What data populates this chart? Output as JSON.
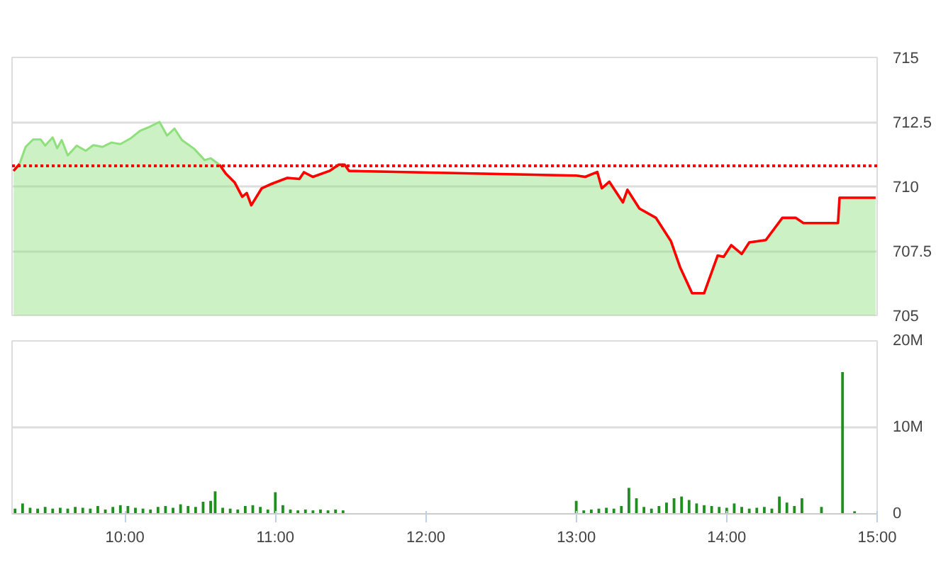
{
  "chart_data": [
    {
      "type": "area",
      "x": [
        9.26,
        9.3,
        9.34,
        9.39,
        9.44,
        9.47,
        9.52,
        9.55,
        9.58,
        9.62,
        9.68,
        9.74,
        9.79,
        9.85,
        9.91,
        9.97,
        10.04,
        10.1,
        10.16,
        10.23,
        10.28,
        10.33,
        10.38,
        10.46,
        10.53,
        10.57,
        10.63,
        10.67,
        10.73,
        10.78,
        10.81,
        10.84,
        10.91,
        10.98,
        11.08,
        11.16,
        11.19,
        11.25,
        11.36,
        11.42,
        11.46,
        11.49,
        13.0,
        13.06,
        13.14,
        13.17,
        13.22,
        13.31,
        13.34,
        13.42,
        13.53,
        13.63,
        13.69,
        13.77,
        13.85,
        13.94,
        13.98,
        14.03,
        14.1,
        14.15,
        14.26,
        14.37,
        14.46,
        14.51,
        14.74,
        14.75,
        14.99
      ],
      "series": [
        {
          "type": "area",
          "color": "#8fe07c",
          "values": [
            710.6,
            710.87,
            711.53,
            711.82,
            711.82,
            711.58,
            711.9,
            711.48,
            711.8,
            711.2,
            711.58,
            711.38,
            711.6,
            711.53,
            711.7,
            711.64,
            711.87,
            712.15,
            712.3,
            712.5,
            711.97,
            712.24,
            711.79,
            711.46,
            711.02,
            711.09,
            710.84,
            710.5,
            710.15,
            709.6,
            709.74,
            709.27,
            709.93,
            710.11,
            710.33,
            710.29,
            710.55,
            710.37,
            710.6,
            710.84,
            710.84,
            710.6,
            710.42,
            710.37,
            710.56,
            709.93,
            710.18,
            709.38,
            709.87,
            709.14,
            708.78,
            707.87,
            706.87,
            705.86,
            705.86,
            707.32,
            707.27,
            707.72,
            707.38,
            707.83,
            707.92,
            708.78,
            708.78,
            708.58,
            708.58,
            709.56,
            709.56
          ]
        },
        {
          "type": "line",
          "color": "#ff0000",
          "values": [
            710.6,
            710.87,
            null,
            null,
            null,
            null,
            null,
            null,
            null,
            null,
            null,
            null,
            null,
            null,
            null,
            null,
            null,
            null,
            null,
            null,
            null,
            null,
            null,
            null,
            null,
            null,
            710.84,
            710.5,
            710.15,
            709.6,
            709.74,
            709.27,
            709.93,
            710.11,
            710.33,
            710.29,
            710.55,
            710.37,
            710.6,
            710.84,
            710.84,
            710.6,
            710.42,
            710.37,
            710.56,
            709.93,
            710.18,
            709.38,
            709.87,
            709.14,
            708.78,
            707.87,
            706.87,
            705.86,
            705.86,
            707.32,
            707.27,
            707.72,
            707.38,
            707.83,
            707.92,
            708.78,
            708.78,
            708.58,
            708.58,
            709.56,
            709.56
          ]
        }
      ],
      "xlim": [
        9.25,
        15.0
      ],
      "ylim": [
        705,
        715
      ],
      "yticks": [
        705,
        707.5,
        710,
        712.5,
        715
      ],
      "ref_lines": [
        {
          "axis": "y",
          "value": 710.8,
          "color": "#ff0000",
          "line_style": "dotted"
        }
      ],
      "grid": "y",
      "tick_labels": "y"
    },
    {
      "type": "bar",
      "x": [
        9.27,
        9.32,
        9.37,
        9.42,
        9.47,
        9.52,
        9.57,
        9.62,
        9.67,
        9.72,
        9.77,
        9.82,
        9.87,
        9.92,
        9.97,
        10.02,
        10.07,
        10.12,
        10.17,
        10.22,
        10.27,
        10.32,
        10.37,
        10.42,
        10.47,
        10.52,
        10.57,
        10.6,
        10.65,
        10.7,
        10.75,
        10.8,
        10.85,
        10.9,
        10.95,
        11.0,
        11.05,
        11.1,
        11.15,
        11.2,
        11.25,
        11.3,
        11.35,
        11.4,
        11.45,
        13.0,
        13.05,
        13.1,
        13.15,
        13.2,
        13.25,
        13.3,
        13.35,
        13.4,
        13.45,
        13.5,
        13.55,
        13.6,
        13.65,
        13.7,
        13.75,
        13.8,
        13.85,
        13.9,
        13.95,
        14.0,
        14.05,
        14.1,
        14.15,
        14.2,
        14.25,
        14.3,
        14.35,
        14.4,
        14.45,
        14.5,
        14.63,
        14.77,
        14.85
      ],
      "series": [
        {
          "color": "#1f8f1f",
          "values": [
            0.6,
            1.2,
            0.7,
            0.6,
            0.8,
            0.6,
            0.7,
            0.6,
            0.8,
            0.7,
            0.6,
            0.9,
            0.5,
            0.8,
            1.0,
            0.9,
            0.7,
            0.6,
            0.5,
            0.8,
            0.9,
            0.7,
            1.1,
            0.9,
            0.8,
            1.4,
            1.5,
            2.6,
            0.7,
            0.6,
            0.5,
            0.9,
            1.0,
            0.8,
            0.5,
            2.5,
            1.0,
            0.5,
            0.4,
            0.5,
            0.4,
            0.5,
            0.4,
            0.5,
            0.4,
            1.5,
            0.4,
            0.5,
            0.6,
            0.7,
            0.6,
            0.9,
            3.0,
            1.8,
            0.8,
            0.6,
            0.9,
            1.3,
            1.8,
            2.0,
            1.6,
            1.2,
            1.0,
            0.9,
            0.8,
            0.7,
            1.2,
            0.8,
            0.6,
            0.7,
            0.8,
            0.6,
            2.0,
            1.3,
            0.9,
            1.8,
            0.8,
            16.4,
            0.3
          ]
        }
      ],
      "xlim": [
        9.25,
        15.0
      ],
      "xticks": [
        {
          "value": 10,
          "label": "10:00"
        },
        {
          "value": 11,
          "label": "11:00"
        },
        {
          "value": 12,
          "label": "12:00"
        },
        {
          "value": 13,
          "label": "13:00"
        },
        {
          "value": 14,
          "label": "14:00"
        },
        {
          "value": 15,
          "label": "15:00"
        }
      ],
      "ylim": [
        0,
        20
      ],
      "yticks": [
        0,
        {
          "value": 10,
          "label": "10M"
        },
        {
          "value": 20,
          "label": "20M"
        }
      ],
      "grid": "y"
    }
  ]
}
